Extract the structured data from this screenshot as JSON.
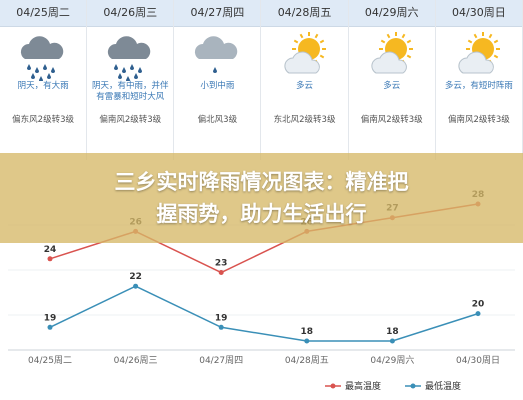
{
  "forecast": [
    {
      "date": "04/25周二",
      "weather": "阴天，有大雨",
      "wind": "偏东风2级转3级"
    },
    {
      "date": "04/26周三",
      "weather": "阴天，有中雨，并伴有雷暴和短时大风",
      "wind": "偏南风2级转3级"
    },
    {
      "date": "04/27周四",
      "weather": "小到中雨",
      "wind": "偏北风3级"
    },
    {
      "date": "04/28周五",
      "weather": "多云",
      "wind": "东北风2级转3级"
    },
    {
      "date": "04/29周六",
      "weather": "多云",
      "wind": "偏南风2级转3级"
    },
    {
      "date": "04/30周日",
      "weather": "多云，有短时阵雨",
      "wind": "偏南风2级转3级"
    }
  ],
  "banner": {
    "title": "三乡实时降雨情况图表：精准把握雨势，助力生活出行"
  },
  "chart_data": {
    "type": "line",
    "categories": [
      "04/25周二",
      "04/26周三",
      "04/27周四",
      "04/28周五",
      "04/29周六",
      "04/30周日"
    ],
    "series": [
      {
        "name": "最高温度",
        "color": "#d9534f",
        "values": [
          24,
          26,
          23,
          26,
          27,
          28
        ]
      },
      {
        "name": "最低温度",
        "color": "#3a8fb7",
        "values": [
          19,
          22,
          19,
          18,
          18,
          20
        ]
      }
    ]
  }
}
